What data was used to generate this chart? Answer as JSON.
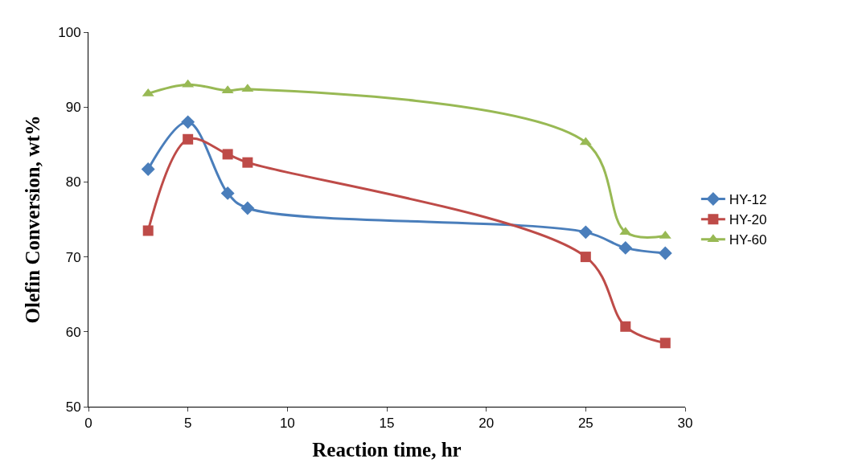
{
  "chart_data": {
    "type": "line",
    "xlabel": "Reaction time, hr",
    "ylabel": "Olefin Conversion, wt%",
    "x": [
      3,
      5,
      7,
      8,
      25,
      27,
      29
    ],
    "series": [
      {
        "name": "HY-12",
        "color": "#4a7ebb",
        "marker": "diamond",
        "values": [
          81.7,
          88.0,
          78.5,
          76.5,
          73.3,
          71.2,
          70.5
        ]
      },
      {
        "name": "HY-20",
        "color": "#be4b48",
        "marker": "square",
        "values": [
          73.5,
          85.7,
          83.7,
          82.6,
          70.0,
          60.7,
          58.5
        ]
      },
      {
        "name": "HY-60",
        "color": "#98b954",
        "marker": "triangle",
        "values": [
          91.8,
          93.0,
          92.2,
          92.4,
          85.3,
          73.3,
          72.8
        ]
      }
    ],
    "xlim": [
      0,
      30
    ],
    "xticks": [
      0,
      5,
      10,
      15,
      20,
      25,
      30
    ],
    "ylim": [
      50,
      100
    ],
    "yticks": [
      50,
      60,
      70,
      80,
      90,
      100
    ],
    "grid": false,
    "legend": "right"
  }
}
